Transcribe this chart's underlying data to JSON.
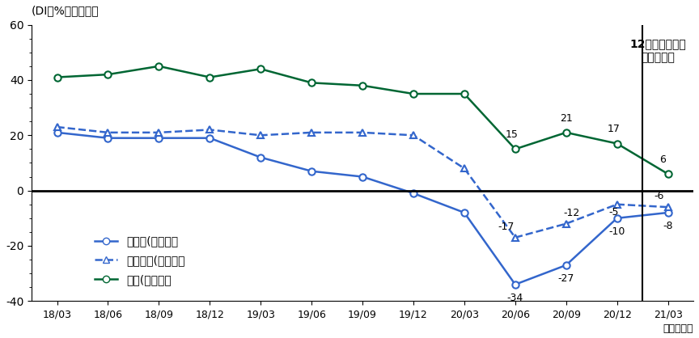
{
  "x_labels": [
    "18/03",
    "18/06",
    "18/09",
    "18/12",
    "19/03",
    "19/06",
    "19/09",
    "19/12",
    "20/03",
    "20/06",
    "20/09",
    "20/12",
    "21/03"
  ],
  "manufacturing": [
    21,
    19,
    19,
    19,
    12,
    7,
    5,
    -1,
    -8,
    -34,
    -27,
    -10,
    -8
  ],
  "non_manufacturing": [
    23,
    21,
    21,
    22,
    20,
    21,
    21,
    20,
    8,
    -17,
    -12,
    -5,
    -6
  ],
  "construction": [
    41,
    42,
    45,
    41,
    44,
    39,
    38,
    35,
    35,
    15,
    21,
    17,
    6
  ],
  "annotations_manuf": [
    [
      -34,
      "20/06"
    ],
    [
      -27,
      "20/09"
    ],
    [
      -10,
      "20/12"
    ],
    [
      -8,
      "21/03"
    ]
  ],
  "annotations_nonmanuf": [
    [
      -17,
      "20/06"
    ],
    [
      -12,
      "20/09"
    ],
    [
      -5,
      "20/12"
    ],
    [
      -6,
      "21/03"
    ]
  ],
  "annotations_const": [
    [
      15,
      "20/06"
    ],
    [
      21,
      "20/09"
    ],
    [
      17,
      "20/12"
    ],
    [
      6,
      "21/03"
    ]
  ],
  "color_blue": "#3366CC",
  "color_green": "#006633",
  "ylabel": "(DI、%ポイント）",
  "xlabel": "（四半期）",
  "ylim_min": -40,
  "ylim_max": 60,
  "yticks": [
    -40,
    -20,
    0,
    20,
    40,
    60
  ],
  "legend_manufacturing": "製造業(大企業）",
  "legend_non_manufacturing": "非製造業(大企業）",
  "legend_construction": "建設(大企業）",
  "annotation_box_label": "12月調査による\n先行き判断"
}
